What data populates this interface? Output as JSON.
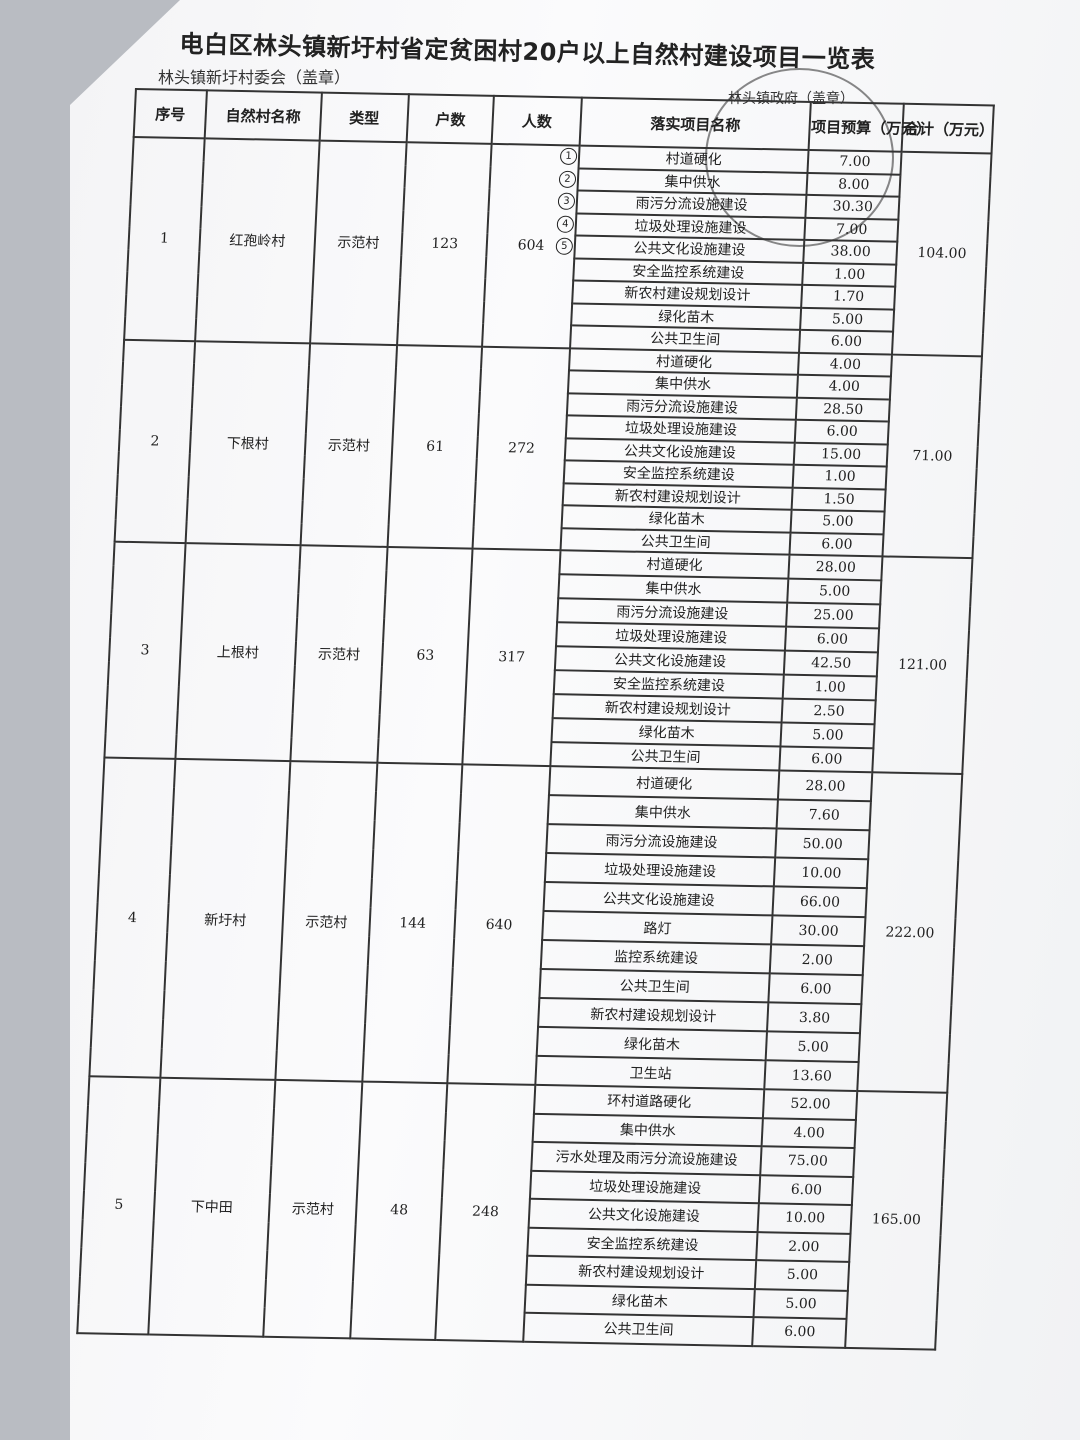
{
  "document": {
    "title": "电白区林头镇新圩村省定贫困村20户以上自然村建设项目一览表",
    "left_stamp_label": "林头镇新圩村委会（盖章）",
    "right_stamp_label": "林头镇政府（盖章）",
    "headers": [
      "序号",
      "自然村名称",
      "类型",
      "户数",
      "人数",
      "落实项目名称",
      "项目预算（万元）",
      "合计（万元）"
    ],
    "handwritten_annotations": [
      "1",
      "2",
      "3",
      "4",
      "5"
    ],
    "villages": [
      {
        "no": "1",
        "name": "红孢岭村",
        "type": "示范村",
        "households": "123",
        "people": "604",
        "total": "104.00",
        "items": [
          {
            "name": "村道硬化",
            "budget": "7.00"
          },
          {
            "name": "集中供水",
            "budget": "8.00"
          },
          {
            "name": "雨污分流设施建设",
            "budget": "30.30"
          },
          {
            "name": "垃圾处理设施建设",
            "budget": "7.00"
          },
          {
            "name": "公共文化设施建设",
            "budget": "38.00"
          },
          {
            "name": "安全监控系统建设",
            "budget": "1.00"
          },
          {
            "name": "新农村建设规划设计",
            "budget": "1.70"
          },
          {
            "name": "绿化苗木",
            "budget": "5.00"
          },
          {
            "name": "公共卫生间",
            "budget": "6.00"
          }
        ]
      },
      {
        "no": "2",
        "name": "下根村",
        "type": "示范村",
        "households": "61",
        "people": "272",
        "total": "71.00",
        "items": [
          {
            "name": "村道硬化",
            "budget": "4.00"
          },
          {
            "name": "集中供水",
            "budget": "4.00"
          },
          {
            "name": "雨污分流设施建设",
            "budget": "28.50"
          },
          {
            "name": "垃圾处理设施建设",
            "budget": "6.00"
          },
          {
            "name": "公共文化设施建设",
            "budget": "15.00"
          },
          {
            "name": "安全监控系统建设",
            "budget": "1.00"
          },
          {
            "name": "新农村建设规划设计",
            "budget": "1.50"
          },
          {
            "name": "绿化苗木",
            "budget": "5.00"
          },
          {
            "name": "公共卫生间",
            "budget": "6.00"
          }
        ]
      },
      {
        "no": "3",
        "name": "上根村",
        "type": "示范村",
        "households": "63",
        "people": "317",
        "total": "121.00",
        "items": [
          {
            "name": "村道硬化",
            "budget": "28.00"
          },
          {
            "name": "集中供水",
            "budget": "5.00"
          },
          {
            "name": "雨污分流设施建设",
            "budget": "25.00"
          },
          {
            "name": "垃圾处理设施建设",
            "budget": "6.00"
          },
          {
            "name": "公共文化设施建设",
            "budget": "42.50"
          },
          {
            "name": "安全监控系统建设",
            "budget": "1.00"
          },
          {
            "name": "新农村建设规划设计",
            "budget": "2.50"
          },
          {
            "name": "绿化苗木",
            "budget": "5.00"
          },
          {
            "name": "公共卫生间",
            "budget": "6.00"
          }
        ]
      },
      {
        "no": "4",
        "name": "新圩村",
        "type": "示范村",
        "households": "144",
        "people": "640",
        "total": "222.00",
        "items": [
          {
            "name": "村道硬化",
            "budget": "28.00"
          },
          {
            "name": "集中供水",
            "budget": "7.60"
          },
          {
            "name": "雨污分流设施建设",
            "budget": "50.00"
          },
          {
            "name": "垃圾处理设施建设",
            "budget": "10.00"
          },
          {
            "name": "公共文化设施建设",
            "budget": "66.00"
          },
          {
            "name": "路灯",
            "budget": "30.00"
          },
          {
            "name": "监控系统建设",
            "budget": "2.00"
          },
          {
            "name": "公共卫生间",
            "budget": "6.00"
          },
          {
            "name": "新农村建设规划设计",
            "budget": "3.80"
          },
          {
            "name": "绿化苗木",
            "budget": "5.00"
          },
          {
            "name": "卫生站",
            "budget": "13.60"
          }
        ]
      },
      {
        "no": "5",
        "name": "下中田",
        "type": "示范村",
        "households": "48",
        "people": "248",
        "total": "165.00",
        "items": [
          {
            "name": "环村道路硬化",
            "budget": "52.00"
          },
          {
            "name": "集中供水",
            "budget": "4.00"
          },
          {
            "name": "污水处理及雨污分流设施建设",
            "budget": "75.00"
          },
          {
            "name": "垃圾处理设施建设",
            "budget": "6.00"
          },
          {
            "name": "公共文化设施建设",
            "budget": "10.00"
          },
          {
            "name": "安全监控系统建设",
            "budget": "2.00"
          },
          {
            "name": "新农村建设规划设计",
            "budget": "5.00"
          },
          {
            "name": "绿化苗木",
            "budget": "5.00"
          },
          {
            "name": "公共卫生间",
            "budget": "6.00"
          }
        ]
      }
    ]
  }
}
